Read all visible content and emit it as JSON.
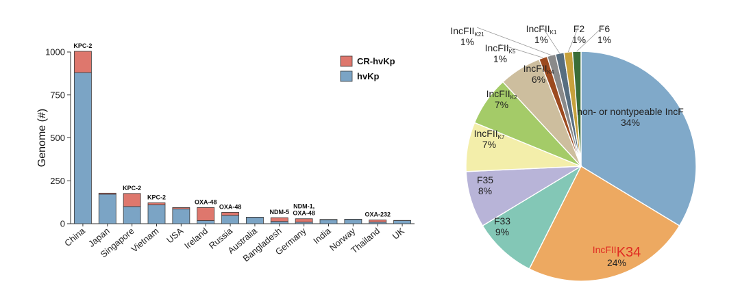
{
  "chart_data": [
    {
      "type": "bar",
      "stacked": true,
      "ylabel": "Genome (#)",
      "ylim": [
        0,
        1000
      ],
      "yticks": [
        "0",
        "250",
        "500",
        "750",
        "1000"
      ],
      "categories": [
        "China",
        "Japan",
        "Singapore",
        "Vietnam",
        "USA",
        "Ireland",
        "Russia",
        "Australia",
        "Bangladesh",
        "Germany",
        "India",
        "Norway",
        "Thailand",
        "UK"
      ],
      "series": [
        {
          "name": "hvKp",
          "color": "#7ba4c5",
          "values": [
            880,
            172,
            100,
            110,
            86,
            18,
            48,
            37,
            13,
            9,
            23,
            25,
            9,
            18
          ]
        },
        {
          "name": "CR-hvKp",
          "color": "#de776d",
          "values": [
            124,
            6,
            76,
            12,
            8,
            76,
            18,
            1,
            22,
            20,
            2,
            1,
            13,
            1
          ]
        }
      ],
      "annotations": [
        {
          "category": "China",
          "lines": [
            "KPC-2"
          ]
        },
        {
          "category": "Singapore",
          "lines": [
            "KPC-2"
          ]
        },
        {
          "category": "Vietnam",
          "lines": [
            "KPC-2"
          ]
        },
        {
          "category": "Ireland",
          "lines": [
            "OXA-48"
          ]
        },
        {
          "category": "Russia",
          "lines": [
            "OXA-48"
          ]
        },
        {
          "category": "Bangladesh",
          "lines": [
            "NDM-5"
          ]
        },
        {
          "category": "Germany",
          "lines": [
            "NDM-1,",
            "OXA-48"
          ]
        },
        {
          "category": "Thailand",
          "lines": [
            "OXA-232"
          ]
        }
      ],
      "legend": {
        "placement": "top-right",
        "order": [
          "CR-hvKp",
          "hvKp"
        ]
      }
    },
    {
      "type": "pie",
      "slices": [
        {
          "label": "non- or nontypeable IncF",
          "sub": "",
          "percent_label": "34%",
          "value": 34.0,
          "color": "#80a9c9"
        },
        {
          "label": "IncFII",
          "sub": "K34",
          "percent_label": "24%",
          "value": 24.0,
          "color": "#eda961",
          "highlight": "#e02b22"
        },
        {
          "label": "F33",
          "sub": "",
          "percent_label": "9%",
          "value": 9.0,
          "color": "#83c7b6"
        },
        {
          "label": "F35",
          "sub": "",
          "percent_label": "8%",
          "value": 8.0,
          "color": "#b8b4d8"
        },
        {
          "label": "IncFII",
          "sub": "K7",
          "percent_label": "7%",
          "value": 7.0,
          "color": "#f3eeaa"
        },
        {
          "label": "IncFII",
          "sub": "K2",
          "percent_label": "7%",
          "value": 7.0,
          "color": "#a4cb68"
        },
        {
          "label": "IncFII",
          "sub": "K4",
          "percent_label": "6%",
          "value": 6.0,
          "color": "#cdbe9e"
        },
        {
          "label": "IncFII",
          "sub": "K5",
          "percent_label": "1%",
          "value": 1.2,
          "color": "#9c4a1f"
        },
        {
          "label": "IncFII",
          "sub": "K21",
          "percent_label": "1%",
          "value": 1.2,
          "color": "#8a8a8a"
        },
        {
          "label": "IncFII",
          "sub": "K1",
          "percent_label": "1%",
          "value": 1.2,
          "color": "#576e80"
        },
        {
          "label": "F2",
          "sub": "",
          "percent_label": "1%",
          "value": 1.2,
          "color": "#c7a13c"
        },
        {
          "label": "F6",
          "sub": "",
          "percent_label": "1%",
          "value": 1.2,
          "color": "#3b6e38"
        }
      ]
    }
  ]
}
